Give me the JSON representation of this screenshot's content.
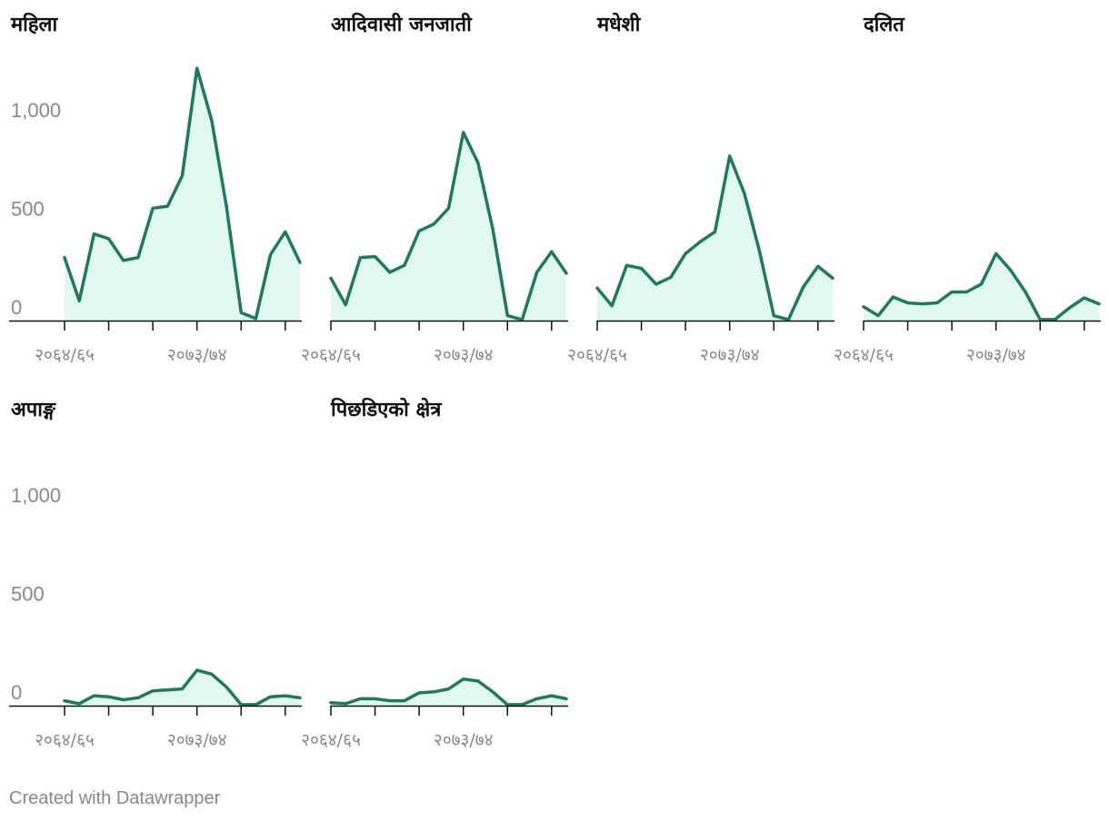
{
  "footer": "Created with Datawrapper",
  "colors": {
    "line": "#1f7a5c",
    "area": "#e0f8f0",
    "axis": "#111111",
    "tick_text": "#888888"
  },
  "chart_data": [
    {
      "type": "area",
      "title": "महिला",
      "x_ticks": [
        "२०६४/६५",
        "२०७३/७४"
      ],
      "y_ticks": [
        "0",
        "500",
        "1,000"
      ],
      "ylim": [
        0,
        1300
      ],
      "values": [
        320,
        100,
        440,
        415,
        305,
        320,
        570,
        580,
        735,
        1280,
        1015,
        580,
        40,
        10,
        335,
        450,
        295
      ]
    },
    {
      "type": "area",
      "title": "आदिवासी जनजाती",
      "x_ticks": [
        "२०६४/६५",
        "२०७३/७४"
      ],
      "y_ticks": [],
      "ylim": [
        0,
        1300
      ],
      "values": [
        215,
        80,
        320,
        325,
        245,
        280,
        455,
        490,
        570,
        955,
        800,
        465,
        25,
        5,
        245,
        350,
        240
      ]
    },
    {
      "type": "area",
      "title": "मधेशी",
      "x_ticks": [
        "२०६४/६५",
        "२०७३/७४"
      ],
      "y_ticks": [],
      "ylim": [
        0,
        1300
      ],
      "values": [
        165,
        75,
        280,
        265,
        185,
        220,
        340,
        400,
        450,
        835,
        645,
        360,
        25,
        5,
        170,
        275,
        215
      ]
    },
    {
      "type": "area",
      "title": "दलित",
      "x_ticks": [
        "२०६४/६५",
        "२०७३/७४"
      ],
      "y_ticks": [],
      "ylim": [
        0,
        1300
      ],
      "values": [
        70,
        25,
        120,
        90,
        85,
        90,
        145,
        145,
        185,
        340,
        255,
        145,
        5,
        5,
        65,
        115,
        85
      ]
    },
    {
      "type": "area",
      "title": "अपाङ्ग",
      "x_ticks": [
        "२०६४/६५",
        "२०७३/७४"
      ],
      "y_ticks": [
        "0",
        "500",
        "1,000"
      ],
      "ylim": [
        0,
        1300
      ],
      "values": [
        25,
        10,
        50,
        45,
        30,
        40,
        75,
        80,
        85,
        180,
        160,
        95,
        5,
        5,
        45,
        50,
        40
      ]
    },
    {
      "type": "area",
      "title": "पिछडिएको क्षेत्र",
      "x_ticks": [
        "२०६४/६५",
        "२०७३/७४"
      ],
      "y_ticks": [],
      "ylim": [
        0,
        1300
      ],
      "values": [
        15,
        10,
        35,
        35,
        25,
        25,
        65,
        70,
        85,
        135,
        125,
        70,
        5,
        5,
        35,
        50,
        35
      ]
    }
  ]
}
